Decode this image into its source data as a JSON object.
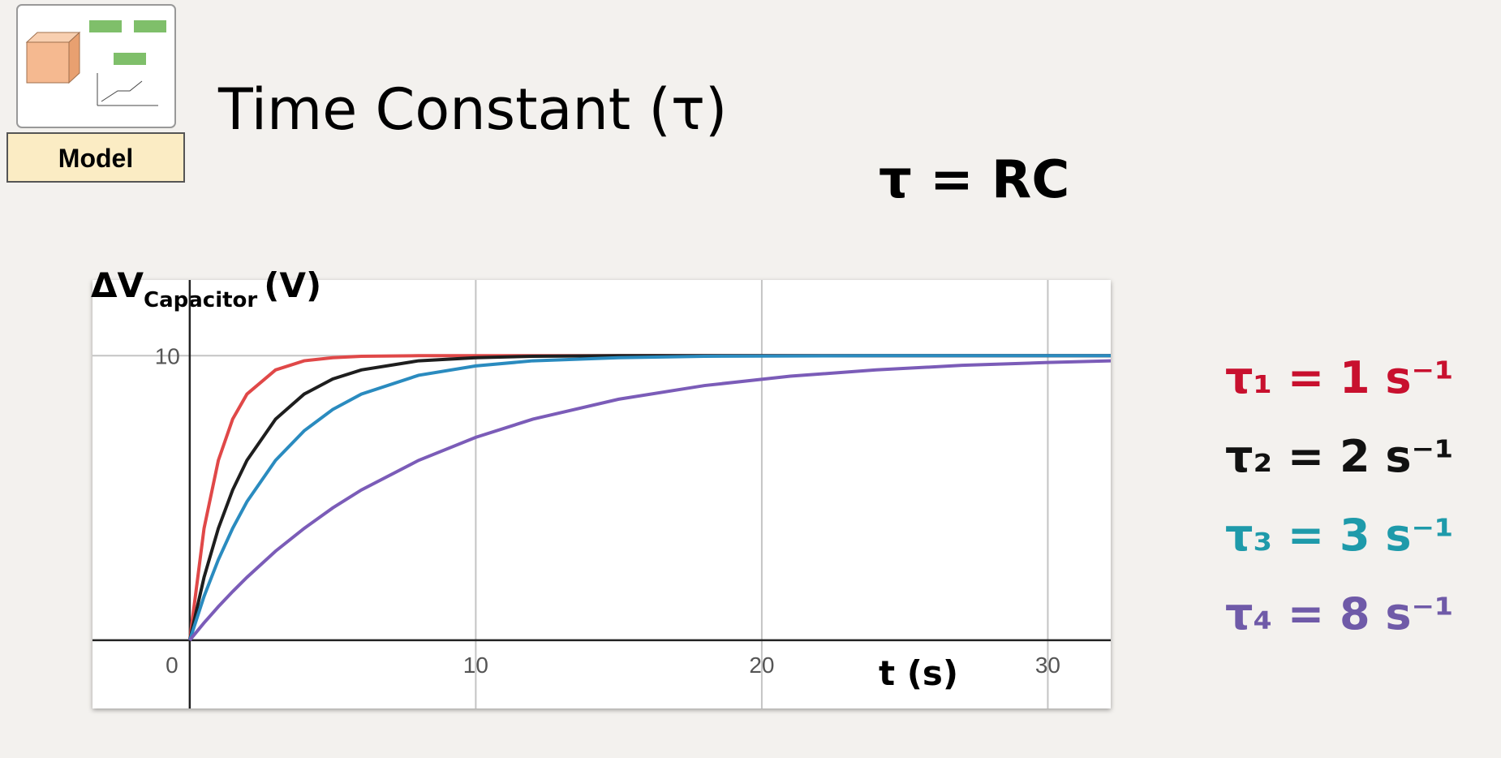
{
  "header": {
    "badge": "Model",
    "title": "Time Constant (τ)",
    "formula": "τ = RC"
  },
  "chart_data": {
    "type": "line",
    "y_label": {
      "symbol": "ΔV",
      "subscript": "Capacitor",
      "unit": "(V)"
    },
    "x_label": "t (s)",
    "x": [
      0,
      0.5,
      1,
      1.5,
      2,
      3,
      4,
      5,
      6,
      8,
      10,
      12,
      15,
      18,
      21,
      24,
      27,
      30,
      32.2
    ],
    "series": [
      {
        "name": "τ₁ = 1 s⁻¹",
        "color": "#e04848",
        "legend_color": "#c8102e",
        "values": [
          0,
          3.93,
          6.32,
          7.77,
          8.65,
          9.5,
          9.82,
          9.93,
          9.98,
          10,
          10,
          10,
          10,
          10,
          10,
          10,
          10,
          10,
          10
        ]
      },
      {
        "name": "τ₂ = 2 s⁻¹",
        "color": "#1e1e1e",
        "legend_color": "#111111",
        "values": [
          0,
          2.21,
          3.93,
          5.28,
          6.32,
          7.77,
          8.65,
          9.18,
          9.5,
          9.82,
          9.93,
          9.98,
          10,
          10,
          10,
          10,
          10,
          10,
          10
        ]
      },
      {
        "name": "τ₃ = 3 s⁻¹",
        "color": "#2a8bbf",
        "legend_color": "#1e9aaa",
        "values": [
          0,
          1.54,
          2.83,
          3.93,
          4.87,
          6.32,
          7.36,
          8.11,
          8.65,
          9.31,
          9.64,
          9.82,
          9.93,
          9.98,
          9.99,
          10,
          10,
          10,
          10
        ]
      },
      {
        "name": "τ₄ = 8 s⁻¹",
        "color": "#7b5cb8",
        "legend_color": "#6f5aa8",
        "values": [
          0,
          0.61,
          1.18,
          1.71,
          2.21,
          3.13,
          3.93,
          4.65,
          5.28,
          6.32,
          7.13,
          7.77,
          8.47,
          8.95,
          9.28,
          9.5,
          9.66,
          9.76,
          9.82
        ]
      }
    ],
    "xlim": [
      -3.4,
      32.2
    ],
    "ylim": [
      -2.4,
      12.66
    ],
    "xticks": [
      0,
      10,
      20,
      30
    ],
    "yticks": [
      10
    ],
    "grid": true
  }
}
